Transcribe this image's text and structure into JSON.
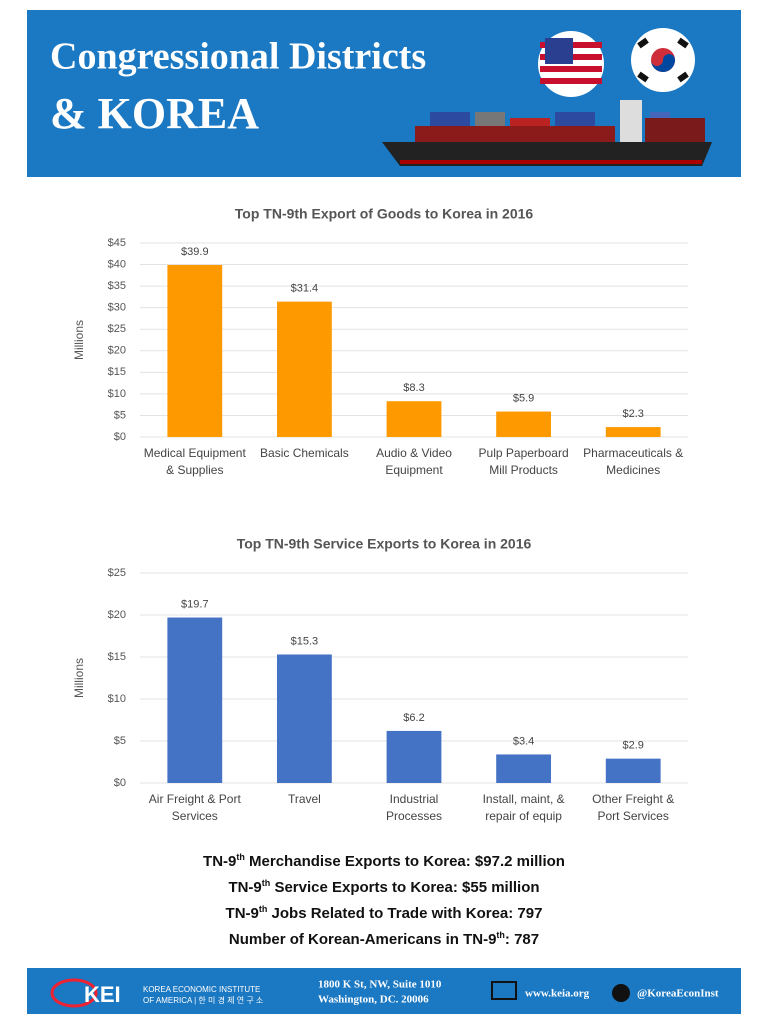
{
  "header": {
    "title_line1": "Congressional Districts",
    "title_line2": "& KOREA"
  },
  "chart_data": [
    {
      "type": "bar",
      "title": "Top TN-9th Export of Goods to Korea in 2016",
      "y_label": "Millions",
      "categories": [
        "Medical Equipment & Supplies",
        "Basic Chemicals",
        "Audio & Video Equipment",
        "Pulp Paperboard Mill Products",
        "Pharmaceuticals & Medicines"
      ],
      "values": [
        39.9,
        31.4,
        8.3,
        5.9,
        2.3
      ],
      "value_labels": [
        "$39.9",
        "$31.4",
        "$8.3",
        "$5.9",
        "$2.3"
      ],
      "color": "#ff9900",
      "ylim": [
        0,
        45
      ],
      "yticks": [
        {
          "value": 0,
          "label": "$0"
        },
        {
          "value": 5,
          "label": "$5"
        },
        {
          "value": 10,
          "label": "$10"
        },
        {
          "value": 15,
          "label": "$15"
        },
        {
          "value": 20,
          "label": "$20"
        },
        {
          "value": 25,
          "label": "$25"
        },
        {
          "value": 30,
          "label": "$30"
        },
        {
          "value": 35,
          "label": "$35"
        },
        {
          "value": 40,
          "label": "$40"
        },
        {
          "value": 45,
          "label": "$45"
        }
      ],
      "grid": true
    },
    {
      "type": "bar",
      "title": "Top TN-9th Service Exports to Korea in 2016",
      "y_label": "Millions",
      "categories": [
        "Air Freight & Port Services",
        "Travel",
        "Industrial Processes",
        "Install, maint, & repair of equip",
        "Other Freight & Port Services"
      ],
      "values": [
        19.7,
        15.3,
        6.2,
        3.4,
        2.9
      ],
      "value_labels": [
        "$19.7",
        "$15.3",
        "$6.2",
        "$3.4",
        "$2.9"
      ],
      "color": "#4472c4",
      "ylim": [
        0,
        25
      ],
      "yticks": [
        {
          "value": 0,
          "label": "$0"
        },
        {
          "value": 5,
          "label": "$5"
        },
        {
          "value": 10,
          "label": "$10"
        },
        {
          "value": 15,
          "label": "$15"
        },
        {
          "value": 20,
          "label": "$20"
        },
        {
          "value": 25,
          "label": "$25"
        }
      ],
      "grid": true
    }
  ],
  "stats": [
    {
      "prefix": "TN-9",
      "sup": "th",
      "text": " Merchandise Exports to Korea: $97.2 million"
    },
    {
      "prefix": "TN-9",
      "sup": "th",
      "text": " Service Exports to Korea: $55 million"
    },
    {
      "prefix": "TN-9",
      "sup": "th",
      "text": " Jobs Related to Trade with Korea: 797"
    },
    {
      "prefix": "Number of Korean-Americans in TN-9",
      "sup": "th",
      "text": ": 787"
    }
  ],
  "footer": {
    "logo": "KEI",
    "org_line1": "KOREA ECONOMIC INSTITUTE",
    "org_line2": "OF AMERICA | 한 미 경 제 연 구 소",
    "address_line1": "1800 K St, NW, Suite 1010",
    "address_line2": "Washington, DC. 20006",
    "website": "www.keia.org",
    "twitter": "@KoreaEconInst"
  }
}
